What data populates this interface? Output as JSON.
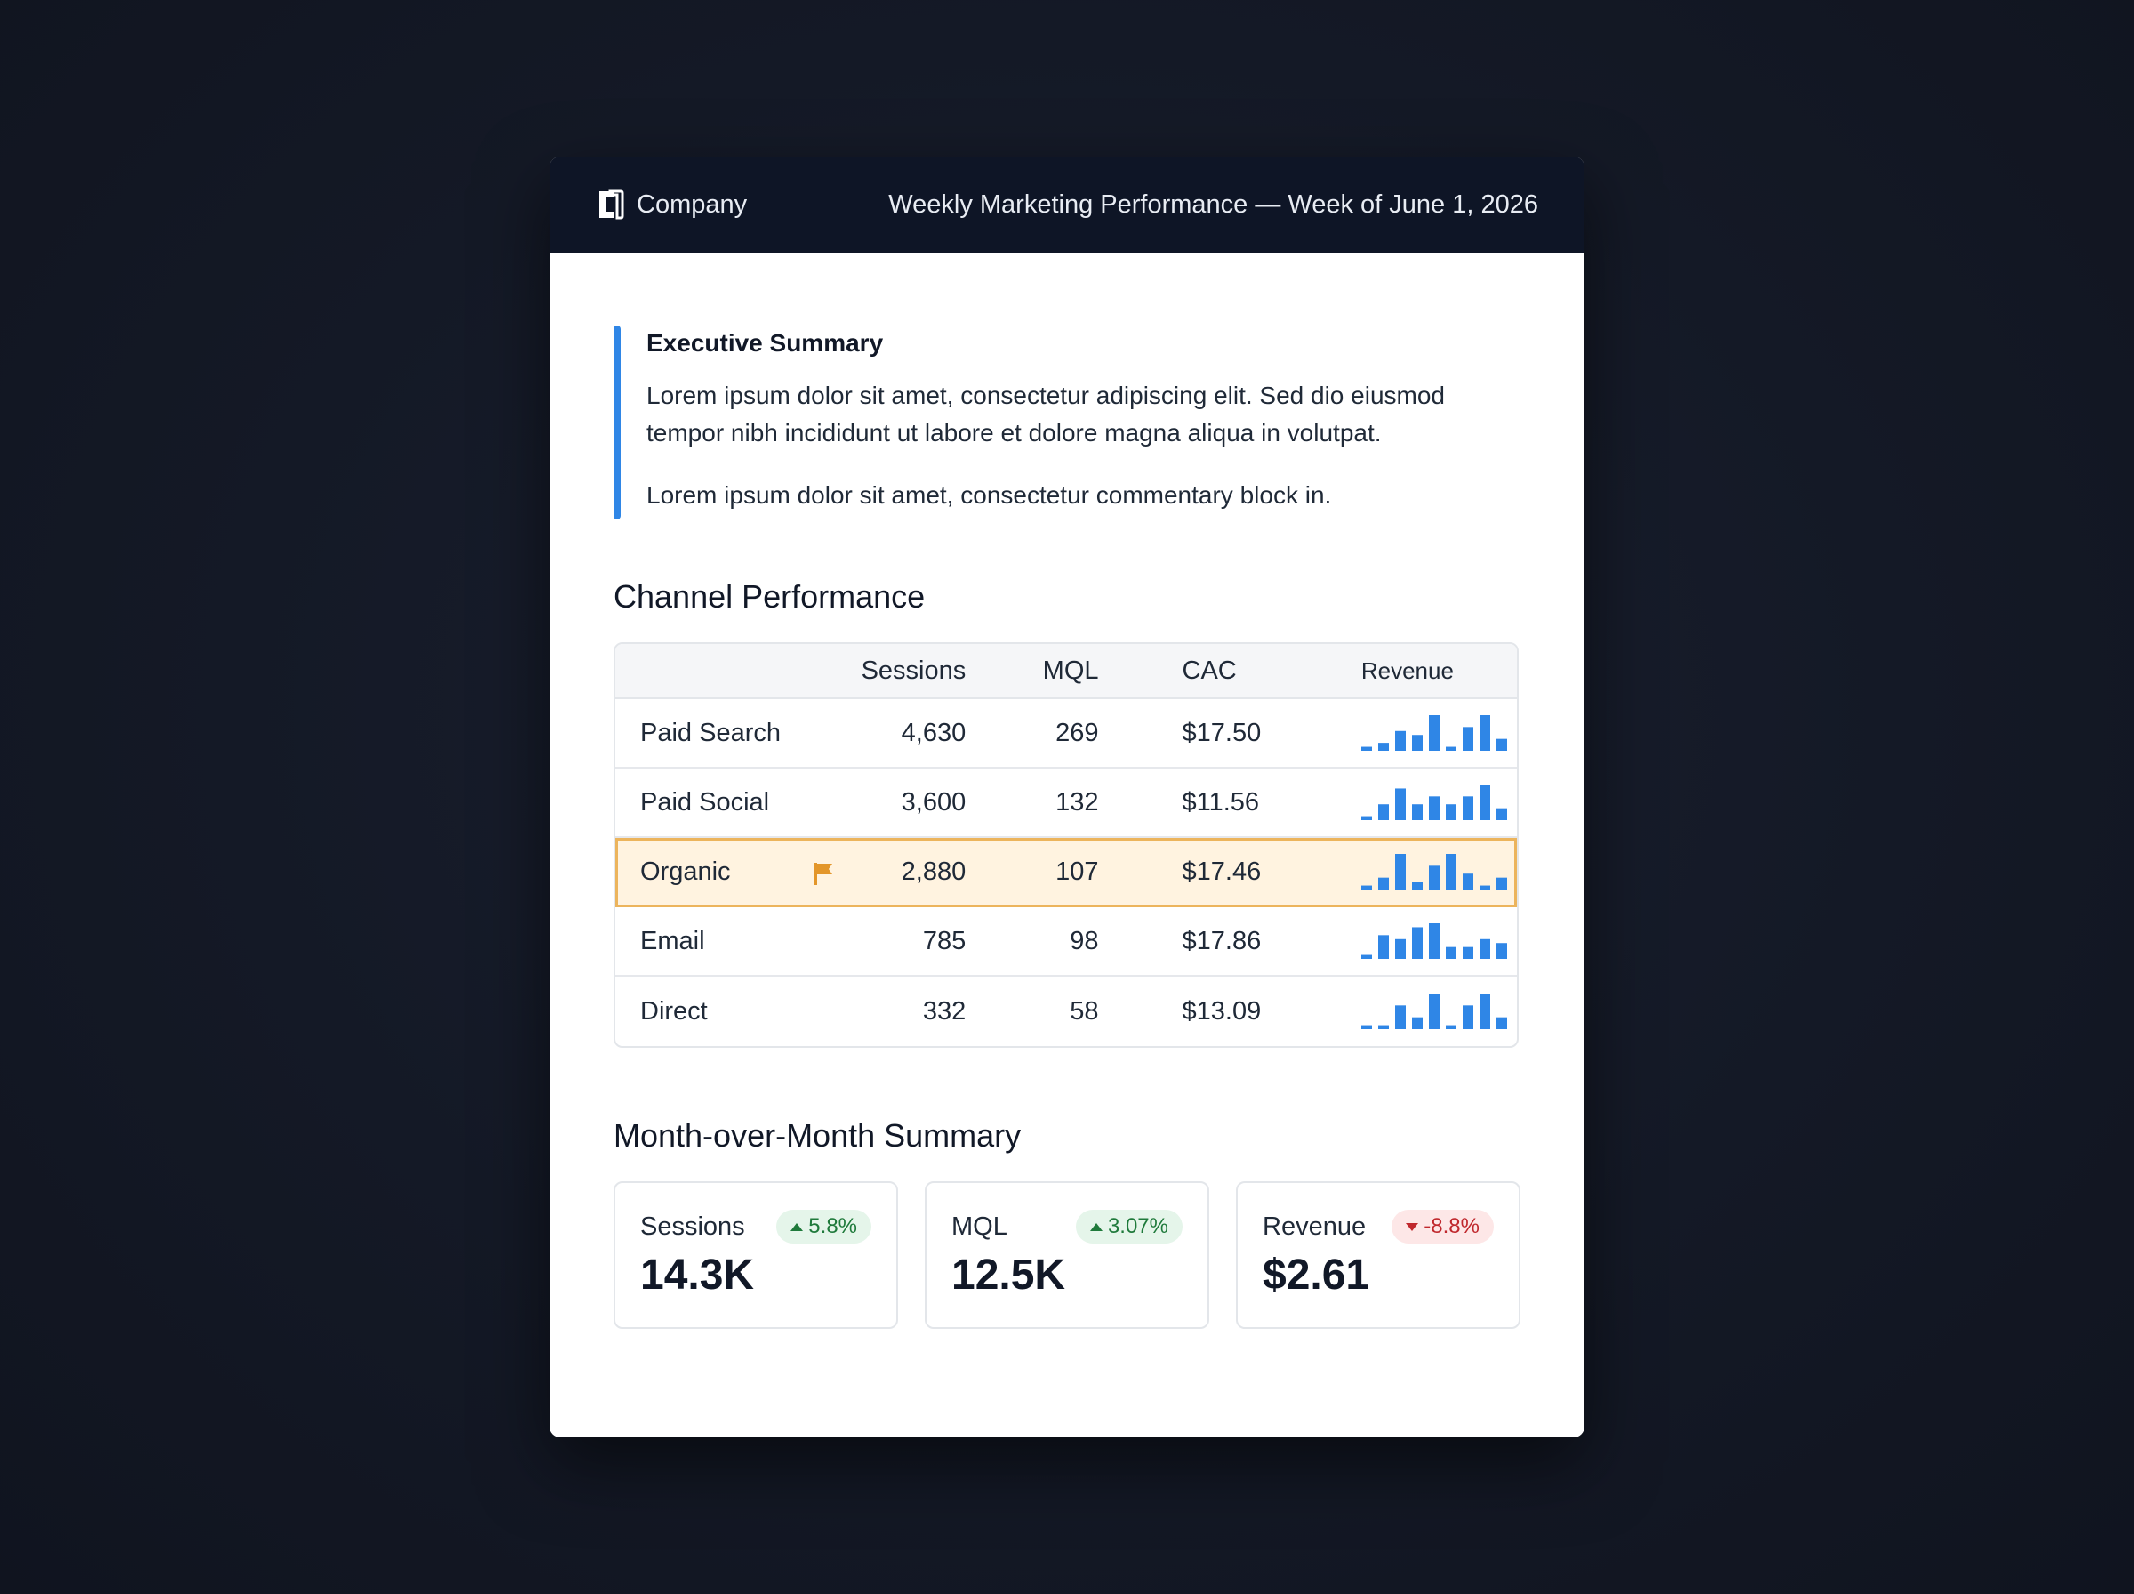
{
  "header": {
    "brand": "Company",
    "logo_icon": "company-logo",
    "title": "Weekly Marketing Performance — Week of June 1, 2026"
  },
  "summary": {
    "title": "Executive Summary",
    "paragraph1": "Lorem ipsum dolor sit amet, consectetur adipiscing elit. Sed dio eiusmod tempor nibh incididunt ut labore et dolore magna aliqua in volutpat.",
    "paragraph2": "Lorem ipsum dolor sit amet, consectetur commentary block in.",
    "accent": "#2f86e6"
  },
  "channels": {
    "title": "Channel Performance",
    "columns": [
      "",
      "Sessions",
      "MQL",
      "CAC",
      "Revenue"
    ],
    "spark_color": "#2f86e6",
    "highlight_color": "#ecb45c",
    "rows": [
      {
        "name": "Paid Search",
        "sessions": "4,630",
        "mql": "269",
        "cac": "$17.50",
        "flagged": false,
        "revenue_trend": [
          1,
          2,
          5,
          4,
          9,
          1,
          6,
          9,
          3
        ]
      },
      {
        "name": "Paid Social",
        "sessions": "3,600",
        "mql": "132",
        "cac": "$11.56",
        "flagged": false,
        "revenue_trend": [
          1,
          4,
          8,
          4,
          6,
          4,
          6,
          9,
          3
        ]
      },
      {
        "name": "Organic",
        "sessions": "2,880",
        "mql": "107",
        "cac": "$17.46",
        "flagged": true,
        "flag_icon": "flag-icon",
        "revenue_trend": [
          1,
          3,
          9,
          2,
          6,
          9,
          4,
          1,
          3
        ]
      },
      {
        "name": "Email",
        "sessions": "785",
        "mql": "98",
        "cac": "$17.86",
        "flagged": false,
        "revenue_trend": [
          1,
          6,
          5,
          8,
          9,
          3,
          3,
          5,
          4
        ]
      },
      {
        "name": "Direct",
        "sessions": "332",
        "mql": "58",
        "cac": "$13.09",
        "flagged": false,
        "revenue_trend": [
          1,
          1,
          6,
          3,
          9,
          1,
          6,
          9,
          3
        ]
      }
    ]
  },
  "mom": {
    "title": "Month-over-Month Summary",
    "cards": [
      {
        "label": "Sessions",
        "value": "14.3K",
        "change": "5.8%",
        "direction": "up",
        "color": "#1f7a3b"
      },
      {
        "label": "MQL",
        "value": "12.5K",
        "change": "3.07%",
        "direction": "up",
        "color": "#1f7a3b"
      },
      {
        "label": "Revenue",
        "value": "$2.61",
        "change": "-8.8%",
        "direction": "down",
        "color": "#c0282d"
      }
    ]
  }
}
